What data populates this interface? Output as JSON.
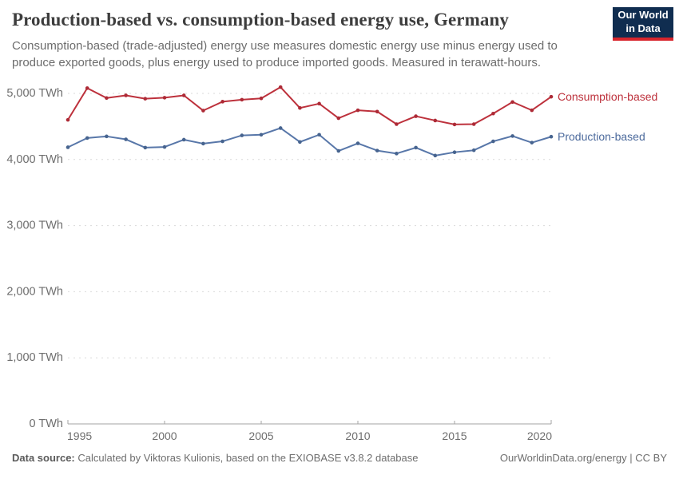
{
  "header": {
    "title": "Production-based vs. consumption-based energy use, Germany",
    "subtitle": "Consumption-based (trade-adjusted) energy use measures domestic energy use minus energy used to produce exported goods, plus energy used to produce imported goods. Measured in terawatt-hours."
  },
  "logo": {
    "line1": "Our World",
    "line2": "in Data",
    "bg_color": "#102d50",
    "accent_color": "#d8252c"
  },
  "chart_data": {
    "type": "line",
    "title": "Production-based vs. consumption-based energy use, Germany",
    "x": [
      1995,
      1996,
      1997,
      1998,
      1999,
      2000,
      2001,
      2002,
      2003,
      2004,
      2005,
      2006,
      2007,
      2008,
      2009,
      2010,
      2011,
      2012,
      2013,
      2014,
      2015,
      2016,
      2017,
      2018,
      2019,
      2020
    ],
    "series": [
      {
        "name": "Consumption-based",
        "color": "#bd313c",
        "marker_color": "#ad2a36",
        "label_color": "#bd313c",
        "values": [
          4600,
          5080,
          4930,
          4970,
          4920,
          4935,
          4970,
          4740,
          4875,
          4905,
          4925,
          5095,
          4780,
          4845,
          4625,
          4745,
          4725,
          4535,
          4655,
          4590,
          4530,
          4535,
          4695,
          4870,
          4745,
          4950
        ]
      },
      {
        "name": "Production-based",
        "color": "#5877a9",
        "marker_color": "#47648f",
        "label_color": "#4c6a9c",
        "values": [
          4185,
          4325,
          4350,
          4305,
          4180,
          4190,
          4300,
          4240,
          4275,
          4365,
          4375,
          4475,
          4265,
          4375,
          4130,
          4245,
          4135,
          4090,
          4180,
          4060,
          4110,
          4140,
          4275,
          4355,
          4255,
          4345
        ]
      }
    ],
    "xticks": [
      1995,
      2000,
      2005,
      2010,
      2015,
      2020
    ],
    "yticks": [
      {
        "value": 0,
        "label": "0 TWh"
      },
      {
        "value": 1000,
        "label": "1,000 TWh"
      },
      {
        "value": 2000,
        "label": "2,000 TWh"
      },
      {
        "value": 3000,
        "label": "3,000 TWh"
      },
      {
        "value": 4000,
        "label": "4,000 TWh"
      },
      {
        "value": 5000,
        "label": "5,000 TWh"
      }
    ],
    "ylim": [
      0,
      5270
    ],
    "xlim": [
      1995,
      2020
    ],
    "unit": "TWh",
    "grid": "horizontal-dashed",
    "legend_position": "right-of-line-ends",
    "grid_color": "#d9d9d9",
    "axis_color": "#a3a3a3",
    "tick_label_color": "#6e6e6e"
  },
  "footer": {
    "source_label": "Data source:",
    "source_text": " Calculated by Viktoras Kulionis, based on the EXIOBASE v3.8.2 database",
    "link": "OurWorldinData.org/energy",
    "separator": " | ",
    "license": "CC BY"
  }
}
